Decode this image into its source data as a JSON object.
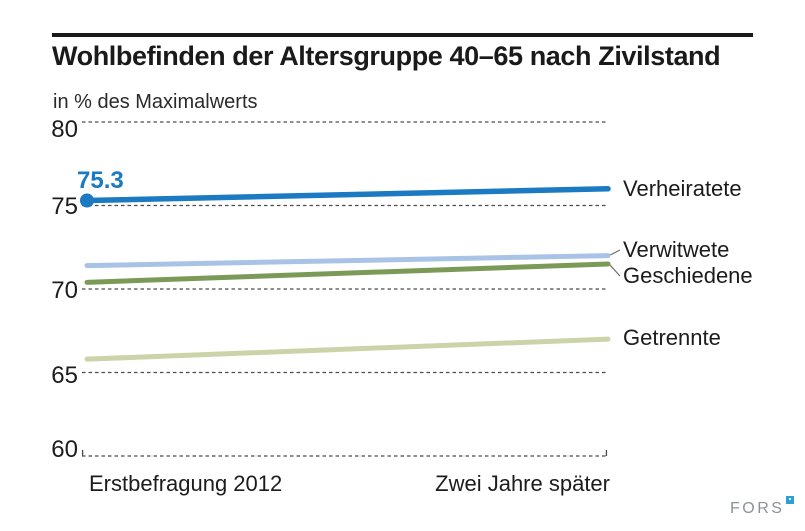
{
  "header": {
    "title": "Wohlbefinden der Altersgruppe 40–65 nach Zivilstand",
    "subtitle": "in % des Maximalwerts"
  },
  "chart_data": {
    "type": "line",
    "title": "Wohlbefinden der Altersgruppe 40–65 nach Zivilstand",
    "subtitle": "in % des Maximalwerts",
    "x_categories": [
      "Erstbefragung 2012",
      "Zwei Jahre später"
    ],
    "y_ticks": [
      "80",
      "75",
      "70",
      "65",
      "60"
    ],
    "ylim": [
      60,
      80
    ],
    "grid": "horizontal-dashed",
    "legend_position": "right-of-line-ends",
    "series": [
      {
        "name": "Verheiratete",
        "values": [
          75.3,
          76.0
        ],
        "color": "#1b7ac1",
        "width": 5.5,
        "start_label": "75.3",
        "start_marker": true
      },
      {
        "name": "Verwitwete",
        "values": [
          71.4,
          72.0
        ],
        "color": "#a8c3e6",
        "width": 5,
        "leader_to_y": 250
      },
      {
        "name": "Geschiedene",
        "values": [
          70.4,
          71.5
        ],
        "color": "#7c9a57",
        "width": 5,
        "leader_to_y": 276
      },
      {
        "name": "Getrennte",
        "values": [
          65.8,
          67.0
        ],
        "color": "#cbd3a9",
        "width": 5
      }
    ]
  },
  "colors": {
    "grid": "#4c4c4c",
    "text": "#1c1c1c",
    "accent_blue": "#1b7ac1",
    "logo_gray": "#8c929a",
    "logo_blue": "#2a9fd8"
  },
  "footer": {
    "logo_text": "FORS"
  }
}
